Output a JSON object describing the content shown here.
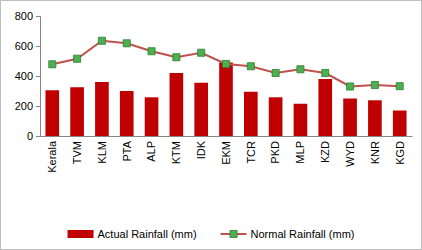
{
  "chart_data": {
    "type": "bar",
    "categories": [
      "Kerala",
      "TVM",
      "KLM",
      "PTA",
      "ALP",
      "KTM",
      "IDK",
      "EKM",
      "TCR",
      "PKD",
      "MLP",
      "KZD",
      "WYD",
      "KNR",
      "KGD"
    ],
    "series": [
      {
        "name": "Actual Rainfall (mm)",
        "type": "bar",
        "color": "#c00000",
        "values": [
          305,
          325,
          360,
          300,
          258,
          420,
          355,
          490,
          295,
          258,
          215,
          380,
          250,
          238,
          170
        ]
      },
      {
        "name": "Normal Rainfall (mm)",
        "type": "line",
        "color": "#c0504d",
        "marker": "square",
        "values": [
          478,
          515,
          635,
          618,
          565,
          525,
          555,
          480,
          465,
          420,
          445,
          420,
          330,
          340,
          332
        ]
      }
    ],
    "ylim": [
      0,
      800
    ],
    "yticks": [
      0,
      200,
      400,
      600,
      800
    ],
    "grid": false,
    "legend": "bottom"
  }
}
